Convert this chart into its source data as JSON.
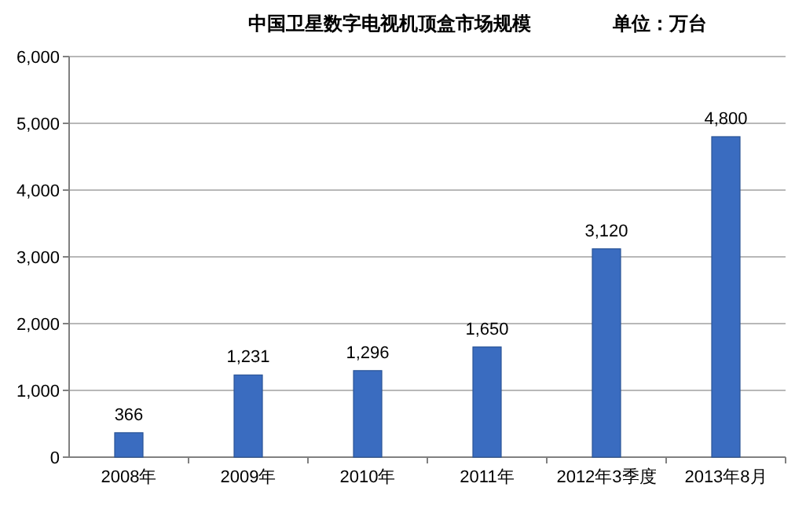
{
  "chart_data": {
    "type": "bar",
    "title": "中国卫星数字电视机顶盒市场规模",
    "subtitle": "单位：万台",
    "categories": [
      "2008年",
      "2009年",
      "2010年",
      "2011年",
      "2012年3季度",
      "2013年8月"
    ],
    "values": [
      366,
      1231,
      1296,
      1650,
      3120,
      4800
    ],
    "value_labels": [
      "366",
      "1,231",
      "1,296",
      "1,650",
      "3,120",
      "4,800"
    ],
    "color": "#3a6cc0",
    "ylim": [
      0,
      6000
    ],
    "yticks": [
      {
        "value": 0,
        "label": "0"
      },
      {
        "value": 1000,
        "label": "1,000"
      },
      {
        "value": 2000,
        "label": "2,000"
      },
      {
        "value": 3000,
        "label": "3,000"
      },
      {
        "value": 4000,
        "label": "4,000"
      },
      {
        "value": 5000,
        "label": "5,000"
      },
      {
        "value": 6000,
        "label": "6,000"
      }
    ],
    "grid": "y"
  }
}
